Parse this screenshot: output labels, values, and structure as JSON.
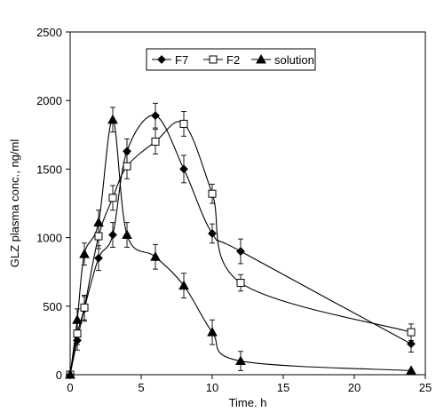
{
  "chart_data": {
    "type": "line",
    "title": "",
    "xlabel": "Time. h",
    "ylabel": "GLZ plasma conc., ng/ml",
    "xlim": [
      0,
      25
    ],
    "ylim": [
      0,
      2500
    ],
    "x_ticks": [
      0,
      5,
      10,
      15,
      20,
      25
    ],
    "y_ticks": [
      0,
      500,
      1000,
      1500,
      2000,
      2500
    ],
    "x_tick_labels": [
      "0",
      "5",
      "10",
      "15",
      "20",
      "25"
    ],
    "y_tick_labels": [
      "0",
      "500",
      "1000",
      "1500",
      "2000",
      "2500"
    ],
    "grid": false,
    "legend_position": "top-right",
    "series": [
      {
        "name": "F7",
        "marker": "diamond",
        "marker_fill": "#000000",
        "x": [
          0,
          0.5,
          1,
          2,
          3,
          4,
          6,
          8,
          10,
          12,
          24
        ],
        "y": [
          0,
          250,
          480,
          850,
          1020,
          1630,
          1890,
          1500,
          1030,
          900,
          225
        ],
        "err": [
          0,
          70,
          90,
          90,
          90,
          90,
          90,
          100,
          70,
          90,
          60
        ]
      },
      {
        "name": "F2",
        "marker": "square",
        "marker_fill": "#ffffff",
        "x": [
          0,
          0.5,
          1,
          2,
          3,
          4,
          6,
          8,
          10,
          12,
          24
        ],
        "y": [
          0,
          300,
          490,
          1010,
          1290,
          1520,
          1700,
          1830,
          1320,
          670,
          310
        ],
        "err": [
          0,
          80,
          90,
          90,
          90,
          90,
          90,
          90,
          70,
          60,
          60
        ]
      },
      {
        "name": "solution",
        "marker": "triangle",
        "marker_fill": "#000000",
        "x": [
          0,
          0.5,
          1,
          2,
          3,
          4,
          6,
          8,
          10,
          12,
          24
        ],
        "y": [
          0,
          400,
          880,
          1110,
          1860,
          1020,
          860,
          650,
          310,
          100,
          30
        ],
        "err": [
          0,
          80,
          80,
          90,
          90,
          90,
          90,
          90,
          90,
          70,
          0
        ]
      }
    ]
  }
}
